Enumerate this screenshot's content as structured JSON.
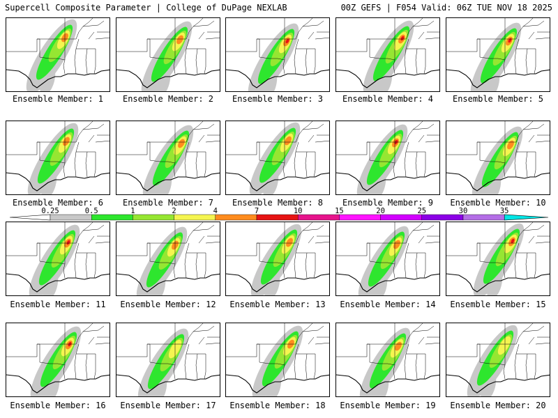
{
  "header": {
    "title_left": "Supercell Composite Parameter | College of DuPage NEXLAB",
    "title_right": "00Z GEFS | F054 Valid: 06Z TUE NOV 18 2025"
  },
  "member_label_prefix": "Ensemble Member:",
  "members": [
    {
      "label": "Ensemble Member: 1",
      "max_level": "4"
    },
    {
      "label": "Ensemble Member: 2",
      "max_level": "4"
    },
    {
      "label": "Ensemble Member: 3",
      "max_level": "7"
    },
    {
      "label": "Ensemble Member: 4",
      "max_level": "7"
    },
    {
      "label": "Ensemble Member: 5",
      "max_level": "7"
    },
    {
      "label": "Ensemble Member: 6",
      "max_level": "4"
    },
    {
      "label": "Ensemble Member: 7",
      "max_level": "4"
    },
    {
      "label": "Ensemble Member: 8",
      "max_level": "4"
    },
    {
      "label": "Ensemble Member: 9",
      "max_level": "7"
    },
    {
      "label": "Ensemble Member: 10",
      "max_level": "4"
    },
    {
      "label": "Ensemble Member: 11",
      "max_level": "7"
    },
    {
      "label": "Ensemble Member: 12",
      "max_level": "4"
    },
    {
      "label": "Ensemble Member: 13",
      "max_level": "4"
    },
    {
      "label": "Ensemble Member: 14",
      "max_level": "4"
    },
    {
      "label": "Ensemble Member: 15",
      "max_level": "7"
    },
    {
      "label": "Ensemble Member: 16",
      "max_level": "7"
    },
    {
      "label": "Ensemble Member: 17",
      "max_level": "2"
    },
    {
      "label": "Ensemble Member: 18",
      "max_level": "4"
    },
    {
      "label": "Ensemble Member: 19",
      "max_level": "4"
    },
    {
      "label": "Ensemble Member: 20",
      "max_level": "2"
    }
  ],
  "legend": {
    "levels": [
      "0.25",
      "0.5",
      "1",
      "2",
      "4",
      "7",
      "10",
      "15",
      "20",
      "25",
      "30",
      "35"
    ],
    "colors": [
      "#c8c8c8",
      "#2ee62e",
      "#96e632",
      "#f5f550",
      "#ff8c1e",
      "#e61414",
      "#e6148c",
      "#ff14ff",
      "#d200ff",
      "#8c00e6",
      "#b46ee6",
      "#00e6e6"
    ]
  }
}
